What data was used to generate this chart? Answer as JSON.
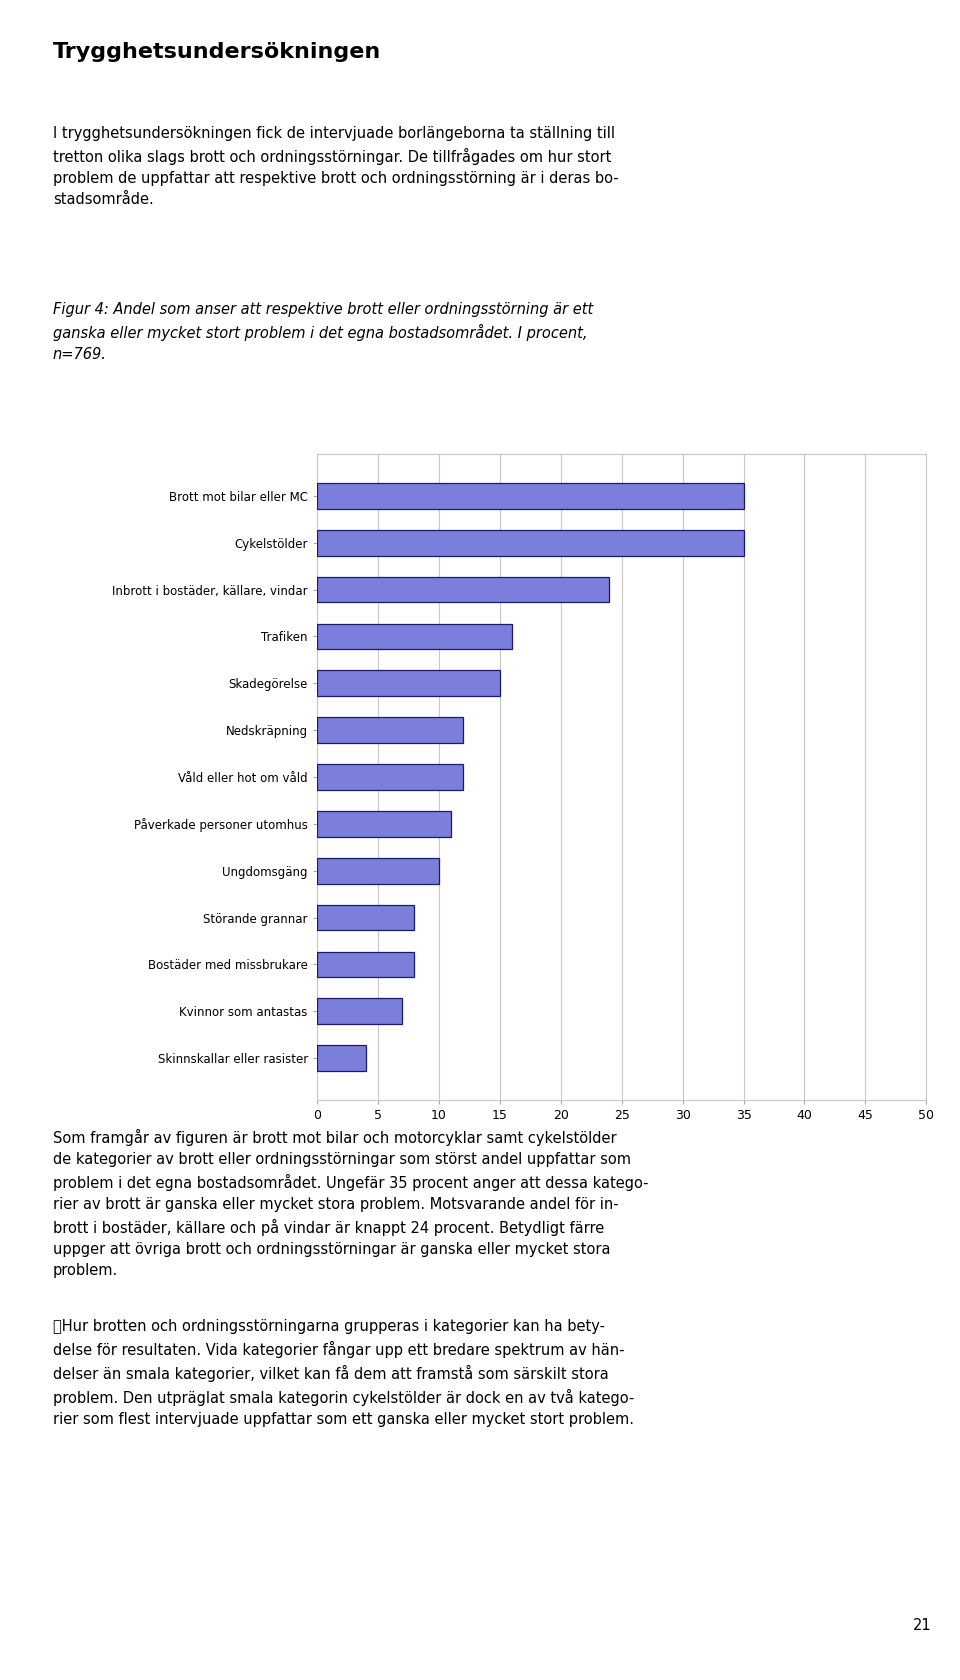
{
  "categories": [
    "Skinnskallar eller rasister",
    "Kvinnor som antastas",
    "Bostäder med missbrukare",
    "Störande grannar",
    "Ungdomsgäng",
    "Påverkade personer utomhus",
    "Våld eller hot om våld",
    "Nedskräpning",
    "Skadegörelse",
    "Trafiken",
    "Inbrott i bostäder, källare, vindar",
    "Cykelstölder",
    "Brott mot bilar eller MC"
  ],
  "values": [
    4,
    7,
    8,
    8,
    10,
    11,
    12,
    12,
    15,
    16,
    24,
    35,
    35
  ],
  "bar_color": "#7b7fdb",
  "bar_edge_color": "#1a1a6e",
  "background_color": "#ffffff",
  "xlim": [
    0,
    50
  ],
  "xticks": [
    0,
    5,
    10,
    15,
    20,
    25,
    30,
    35,
    40,
    45,
    50
  ],
  "grid_color": "#c8c8c8",
  "bar_height": 0.55,
  "figsize": [
    9.6,
    16.8
  ],
  "dpi": 100,
  "label_fontsize": 8.5,
  "tick_fontsize": 9,
  "title_text": "Trygghetsundersökningen",
  "body_text1": "I trygghetsundersökningen fick de intervjuade borlängeborna ta ställning till\ntretton olika slags brott och ordningsstörningar. De tillfrågades om hur stort\nproblem de uppfattar att respektive brott och ordningsstörning är i deras bo-\nstadsområde.",
  "caption_text": "Figur 4: Andel som anser att respektive brott eller ordningsstörning är ett\nganska eller mycket stort problem i det egna bostadsområdet. I procent,\nn=769.",
  "body_text2": "Som framgår av figuren är brott mot bilar och motorcyklar samt cykelstölder\nde kategorier av brott eller ordningsstörningar som störst andel uppfattar som\nproblem i det egna bostadsområdet. Ungefär 35 procent anger att dessa katego-\nrier av brott är ganska eller mycket stora problem. Motsvarande andel för in-\nbrott i bostäder, källare och på vindar är knappt 24 procent. Betydligt färre\nupper att övriga brott och ordningsstörningar är ganska eller mycket stora\nproblem.",
  "body_text3": "\tHur brotten och ordningsstörningarna grupperas i kategorier kan ha bety-\ndelse för resultaten. Vida kategorier fångar upp ett bredare spektrum av hän-\ndelser än smala kategorier, vilket kan få dem att framstå som särskilt stora\nproblem. Den utpräglat smala kategorin cykelstölder är dock en av två katego-\nrier som flest intervjuade uppfattar som ett ganska eller mycket stort problem.",
  "page_number": "21"
}
